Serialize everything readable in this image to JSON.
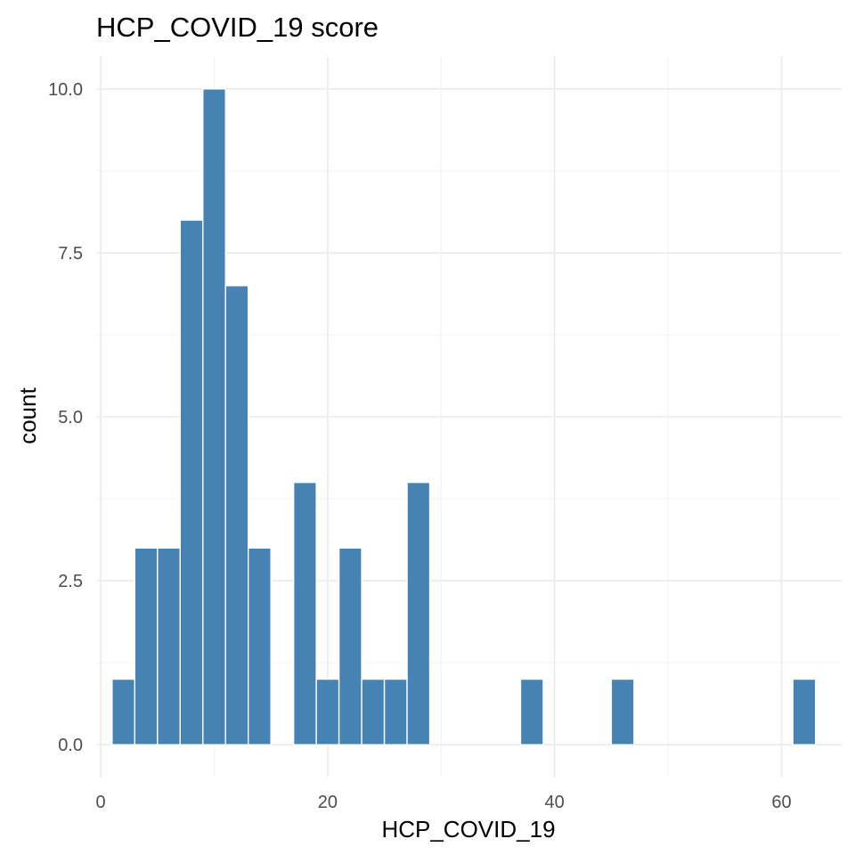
{
  "chart_data": {
    "type": "bar",
    "title": "HCP_COVID_19 score",
    "xlabel": "HCP_COVID_19",
    "ylabel": "count",
    "bar_color": "#4682b4",
    "grid": true,
    "xlim": [
      -0.4,
      65.3
    ],
    "ylim": [
      -0.5,
      10.5
    ],
    "x_ticks": [
      {
        "value": 0,
        "label": "0"
      },
      {
        "value": 20,
        "label": "20"
      },
      {
        "value": 40,
        "label": "40"
      },
      {
        "value": 60,
        "label": "60"
      }
    ],
    "y_ticks": [
      {
        "value": 0,
        "label": "0.0"
      },
      {
        "value": 2.5,
        "label": "2.5"
      },
      {
        "value": 5,
        "label": "5.0"
      },
      {
        "value": 7.5,
        "label": "7.5"
      },
      {
        "value": 10,
        "label": "10.0"
      }
    ],
    "x_minor_ticks": [
      10,
      30,
      50
    ],
    "y_minor_ticks": [
      1.25,
      3.75,
      6.25,
      8.75
    ],
    "bin_width": 2,
    "bins": [
      {
        "x": 2,
        "count": 1
      },
      {
        "x": 4,
        "count": 3
      },
      {
        "x": 6,
        "count": 3
      },
      {
        "x": 8,
        "count": 8
      },
      {
        "x": 10,
        "count": 10
      },
      {
        "x": 12,
        "count": 7
      },
      {
        "x": 14,
        "count": 3
      },
      {
        "x": 16,
        "count": 0
      },
      {
        "x": 18,
        "count": 4
      },
      {
        "x": 20,
        "count": 1
      },
      {
        "x": 22,
        "count": 3
      },
      {
        "x": 24,
        "count": 1
      },
      {
        "x": 26,
        "count": 1
      },
      {
        "x": 28,
        "count": 4
      },
      {
        "x": 38,
        "count": 1
      },
      {
        "x": 46,
        "count": 1
      },
      {
        "x": 62,
        "count": 1
      }
    ]
  }
}
